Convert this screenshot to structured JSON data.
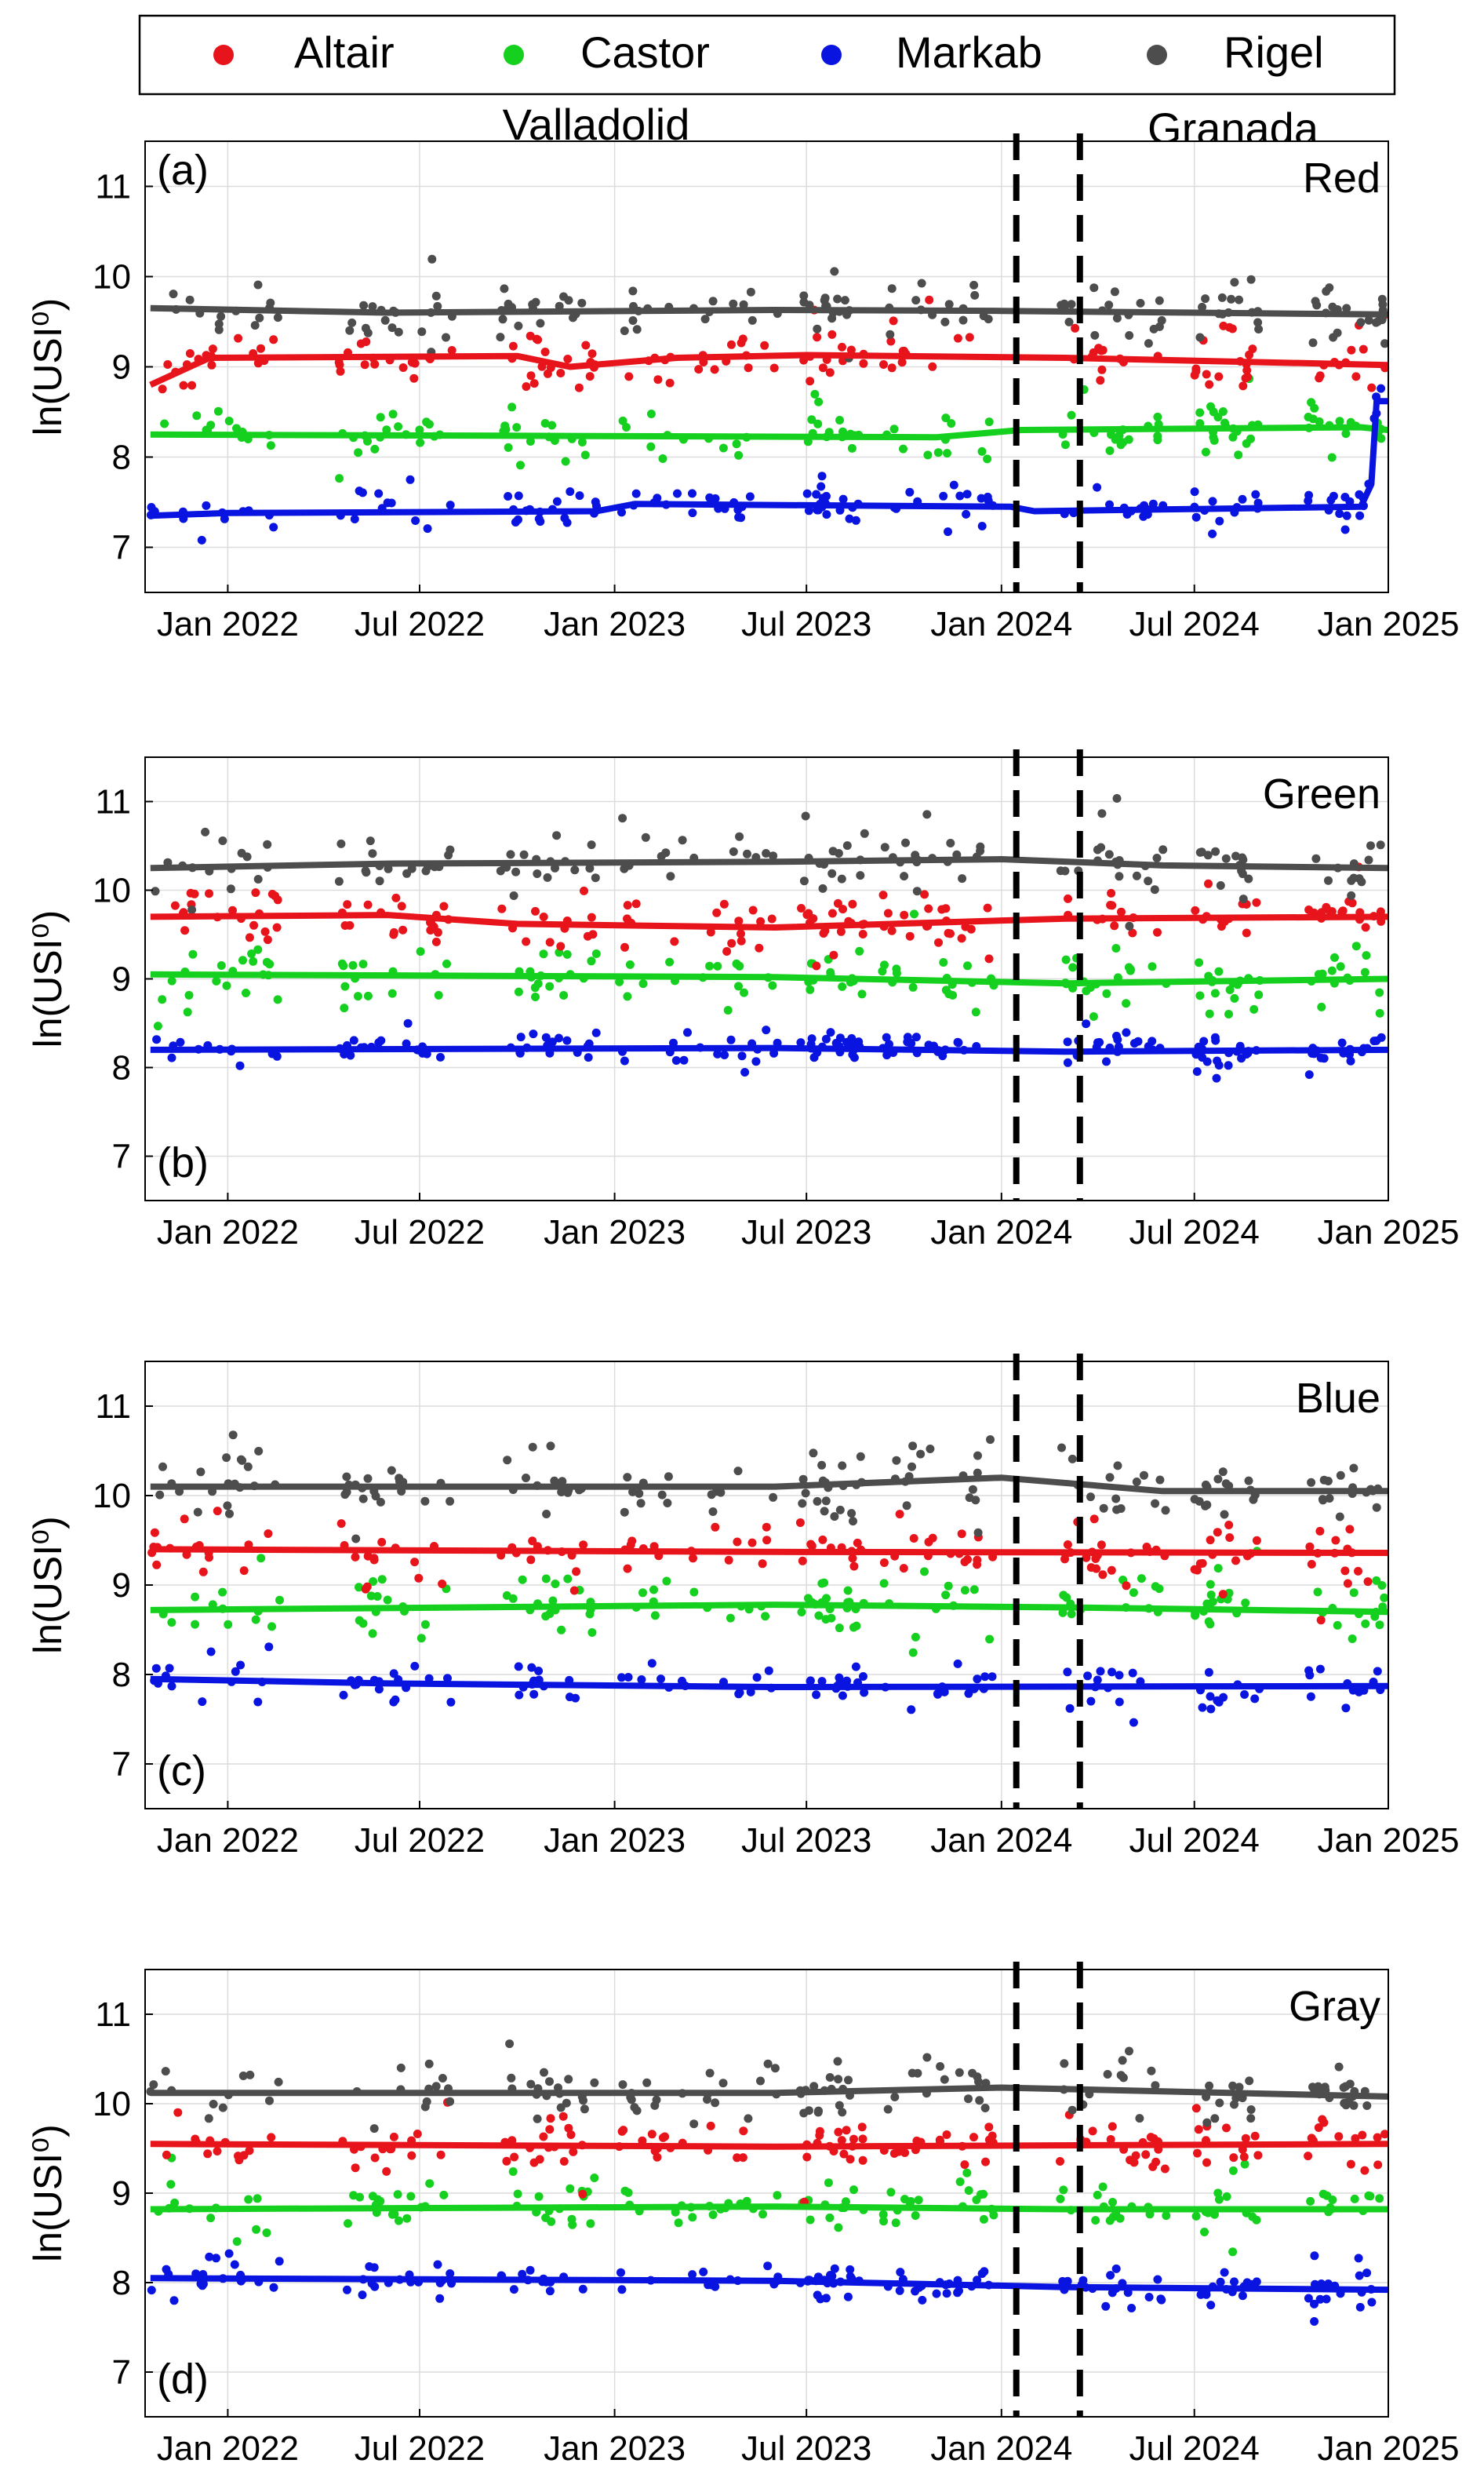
{
  "legend": {
    "entries": [
      {
        "name": "Altair",
        "color": "#e8141b"
      },
      {
        "name": "Castor",
        "color": "#15d01e"
      },
      {
        "name": "Markab",
        "color": "#0a14e0"
      },
      {
        "name": "Rigel",
        "color": "#4d4d4d"
      }
    ]
  },
  "site_labels": {
    "left": "Valladolid",
    "right": "Granada"
  },
  "chart_data": [
    {
      "type": "scatter",
      "panel": "(a)",
      "channel": "Red",
      "ylabel": "ln(USI⁰)",
      "ylim": [
        6.5,
        11.5
      ],
      "yticks": [
        7,
        8,
        9,
        10,
        11
      ],
      "xlim": [
        "2021-10-15",
        "2024-12-31"
      ],
      "xticks": [
        {
          "label": "Jan 2022",
          "date": "2022-01-01"
        },
        {
          "label": "Jul 2022",
          "date": "2022-07-01"
        },
        {
          "label": "Jan 2023",
          "date": "2023-01-01"
        },
        {
          "label": "Jul 2023",
          "date": "2023-07-01"
        },
        {
          "label": "Jan 2024",
          "date": "2024-01-01"
        },
        {
          "label": "Jul 2024",
          "date": "2024-07-01"
        },
        {
          "label": "Jan 2025",
          "date": "2025-01-01"
        }
      ],
      "grid": true,
      "vlines": [
        "2024-01-15",
        "2024-03-15"
      ],
      "series": [
        {
          "name": "Altair",
          "center": 9.1,
          "spread": 0.28,
          "trend": [
            [
              "2021-10-20",
              8.8
            ],
            [
              "2021-12-15",
              9.1
            ],
            [
              "2022-10-01",
              9.12
            ],
            [
              "2022-11-20",
              9.0
            ],
            [
              "2023-03-01",
              9.1
            ],
            [
              "2023-07-01",
              9.13
            ],
            [
              "2024-03-01",
              9.1
            ],
            [
              "2024-12-31",
              9.02
            ]
          ]
        },
        {
          "name": "Castor",
          "center": 8.25,
          "spread": 0.25,
          "trend": [
            [
              "2021-10-20",
              8.25
            ],
            [
              "2023-11-01",
              8.22
            ],
            [
              "2024-01-20",
              8.3
            ],
            [
              "2024-12-05",
              8.33
            ],
            [
              "2024-12-31",
              8.3
            ]
          ]
        },
        {
          "name": "Markab",
          "center": 7.4,
          "spread": 0.18,
          "trend": [
            [
              "2021-10-20",
              7.35
            ],
            [
              "2022-01-01",
              7.38
            ],
            [
              "2022-12-15",
              7.4
            ],
            [
              "2023-01-20",
              7.48
            ],
            [
              "2024-01-10",
              7.45
            ],
            [
              "2024-02-01",
              7.4
            ],
            [
              "2024-12-05",
              7.45
            ],
            [
              "2024-12-15",
              7.7
            ],
            [
              "2024-12-20",
              8.62
            ],
            [
              "2024-12-31",
              8.62
            ]
          ]
        },
        {
          "name": "Rigel",
          "center": 9.62,
          "spread": 0.28,
          "trend": [
            [
              "2021-10-20",
              9.65
            ],
            [
              "2022-06-01",
              9.6
            ],
            [
              "2023-06-01",
              9.63
            ],
            [
              "2024-01-01",
              9.62
            ],
            [
              "2024-12-31",
              9.58
            ]
          ]
        }
      ]
    },
    {
      "type": "scatter",
      "panel": "(b)",
      "channel": "Green",
      "ylabel": "ln(USI⁰)",
      "ylim": [
        6.5,
        11.5
      ],
      "yticks": [
        7,
        8,
        9,
        10,
        11
      ],
      "xlim": [
        "2021-10-15",
        "2024-12-31"
      ],
      "xticks": [
        {
          "label": "Jan 2022",
          "date": "2022-01-01"
        },
        {
          "label": "Jul 2022",
          "date": "2022-07-01"
        },
        {
          "label": "Jan 2023",
          "date": "2023-01-01"
        },
        {
          "label": "Jul 2023",
          "date": "2023-07-01"
        },
        {
          "label": "Jan 2024",
          "date": "2024-01-01"
        },
        {
          "label": "Jul 2024",
          "date": "2024-07-01"
        },
        {
          "label": "Jan 2025",
          "date": "2025-01-01"
        }
      ],
      "grid": true,
      "vlines": [
        "2024-01-15",
        "2024-03-15"
      ],
      "series": [
        {
          "name": "Altair",
          "center": 9.68,
          "spread": 0.28,
          "trend": [
            [
              "2021-10-20",
              9.7
            ],
            [
              "2022-06-01",
              9.72
            ],
            [
              "2022-10-01",
              9.62
            ],
            [
              "2023-06-01",
              9.58
            ],
            [
              "2024-03-01",
              9.68
            ],
            [
              "2024-12-31",
              9.7
            ]
          ]
        },
        {
          "name": "Castor",
          "center": 9.02,
          "spread": 0.28,
          "trend": [
            [
              "2021-10-20",
              9.05
            ],
            [
              "2023-06-01",
              9.02
            ],
            [
              "2024-03-01",
              8.95
            ],
            [
              "2024-12-31",
              9.0
            ]
          ]
        },
        {
          "name": "Markab",
          "center": 8.2,
          "spread": 0.15,
          "trend": [
            [
              "2021-10-20",
              8.2
            ],
            [
              "2023-06-01",
              8.22
            ],
            [
              "2024-03-01",
              8.18
            ],
            [
              "2024-12-31",
              8.2
            ]
          ]
        },
        {
          "name": "Rigel",
          "center": 10.3,
          "spread": 0.28,
          "trend": [
            [
              "2021-10-20",
              10.25
            ],
            [
              "2022-06-01",
              10.3
            ],
            [
              "2023-06-01",
              10.32
            ],
            [
              "2024-01-01",
              10.35
            ],
            [
              "2024-06-01",
              10.28
            ],
            [
              "2024-12-31",
              10.25
            ]
          ]
        }
      ]
    },
    {
      "type": "scatter",
      "panel": "(c)",
      "channel": "Blue",
      "ylabel": "ln(USI⁰)",
      "ylim": [
        6.5,
        11.5
      ],
      "yticks": [
        7,
        8,
        9,
        10,
        11
      ],
      "xlim": [
        "2021-10-15",
        "2024-12-31"
      ],
      "xticks": [
        {
          "label": "Jan 2022",
          "date": "2022-01-01"
        },
        {
          "label": "Jul 2022",
          "date": "2022-07-01"
        },
        {
          "label": "Jan 2023",
          "date": "2023-01-01"
        },
        {
          "label": "Jul 2023",
          "date": "2023-07-01"
        },
        {
          "label": "Jan 2024",
          "date": "2024-01-01"
        },
        {
          "label": "Jul 2024",
          "date": "2024-07-01"
        },
        {
          "label": "Jan 2025",
          "date": "2025-01-01"
        }
      ],
      "grid": true,
      "vlines": [
        "2024-01-15",
        "2024-03-15"
      ],
      "series": [
        {
          "name": "Altair",
          "center": 9.38,
          "spread": 0.3,
          "trend": [
            [
              "2021-10-20",
              9.4
            ],
            [
              "2023-06-01",
              9.37
            ],
            [
              "2024-12-31",
              9.36
            ]
          ]
        },
        {
          "name": "Castor",
          "center": 8.75,
          "spread": 0.3,
          "trend": [
            [
              "2021-10-20",
              8.72
            ],
            [
              "2023-06-01",
              8.78
            ],
            [
              "2024-03-01",
              8.75
            ],
            [
              "2024-12-31",
              8.7
            ]
          ]
        },
        {
          "name": "Markab",
          "center": 7.88,
          "spread": 0.22,
          "trend": [
            [
              "2021-10-20",
              7.95
            ],
            [
              "2022-06-01",
              7.9
            ],
            [
              "2023-06-01",
              7.86
            ],
            [
              "2024-12-31",
              7.87
            ]
          ]
        },
        {
          "name": "Rigel",
          "center": 10.12,
          "spread": 0.3,
          "trend": [
            [
              "2021-10-20",
              10.1
            ],
            [
              "2023-06-01",
              10.1
            ],
            [
              "2024-01-01",
              10.2
            ],
            [
              "2024-06-01",
              10.05
            ],
            [
              "2024-12-31",
              10.05
            ]
          ]
        }
      ]
    },
    {
      "type": "scatter",
      "panel": "(d)",
      "channel": "Gray",
      "ylabel": "ln(USI⁰)",
      "ylim": [
        6.5,
        11.5
      ],
      "yticks": [
        7,
        8,
        9,
        10,
        11
      ],
      "xlim": [
        "2021-10-15",
        "2024-12-31"
      ],
      "xticks": [
        {
          "label": "Jan 2022",
          "date": "2022-01-01"
        },
        {
          "label": "Jul 2022",
          "date": "2022-07-01"
        },
        {
          "label": "Jan 2023",
          "date": "2023-01-01"
        },
        {
          "label": "Jul 2023",
          "date": "2023-07-01"
        },
        {
          "label": "Jan 2024",
          "date": "2024-01-01"
        },
        {
          "label": "Jul 2024",
          "date": "2024-07-01"
        },
        {
          "label": "Jan 2025",
          "date": "2025-01-01"
        }
      ],
      "grid": true,
      "vlines": [
        "2024-01-15",
        "2024-03-15"
      ],
      "series": [
        {
          "name": "Altair",
          "center": 9.55,
          "spread": 0.25,
          "trend": [
            [
              "2021-10-20",
              9.55
            ],
            [
              "2023-06-01",
              9.52
            ],
            [
              "2024-12-31",
              9.55
            ]
          ]
        },
        {
          "name": "Castor",
          "center": 8.85,
          "spread": 0.22,
          "trend": [
            [
              "2021-10-20",
              8.82
            ],
            [
              "2023-06-01",
              8.85
            ],
            [
              "2024-03-01",
              8.82
            ],
            [
              "2024-12-31",
              8.82
            ]
          ]
        },
        {
          "name": "Markab",
          "center": 8.0,
          "spread": 0.18,
          "trend": [
            [
              "2021-10-20",
              8.05
            ],
            [
              "2023-06-01",
              8.02
            ],
            [
              "2024-03-01",
              7.95
            ],
            [
              "2024-12-31",
              7.92
            ]
          ]
        },
        {
          "name": "Rigel",
          "center": 10.15,
          "spread": 0.28,
          "trend": [
            [
              "2021-10-20",
              10.12
            ],
            [
              "2023-06-01",
              10.12
            ],
            [
              "2024-01-01",
              10.18
            ],
            [
              "2024-12-31",
              10.08
            ]
          ]
        }
      ]
    }
  ]
}
